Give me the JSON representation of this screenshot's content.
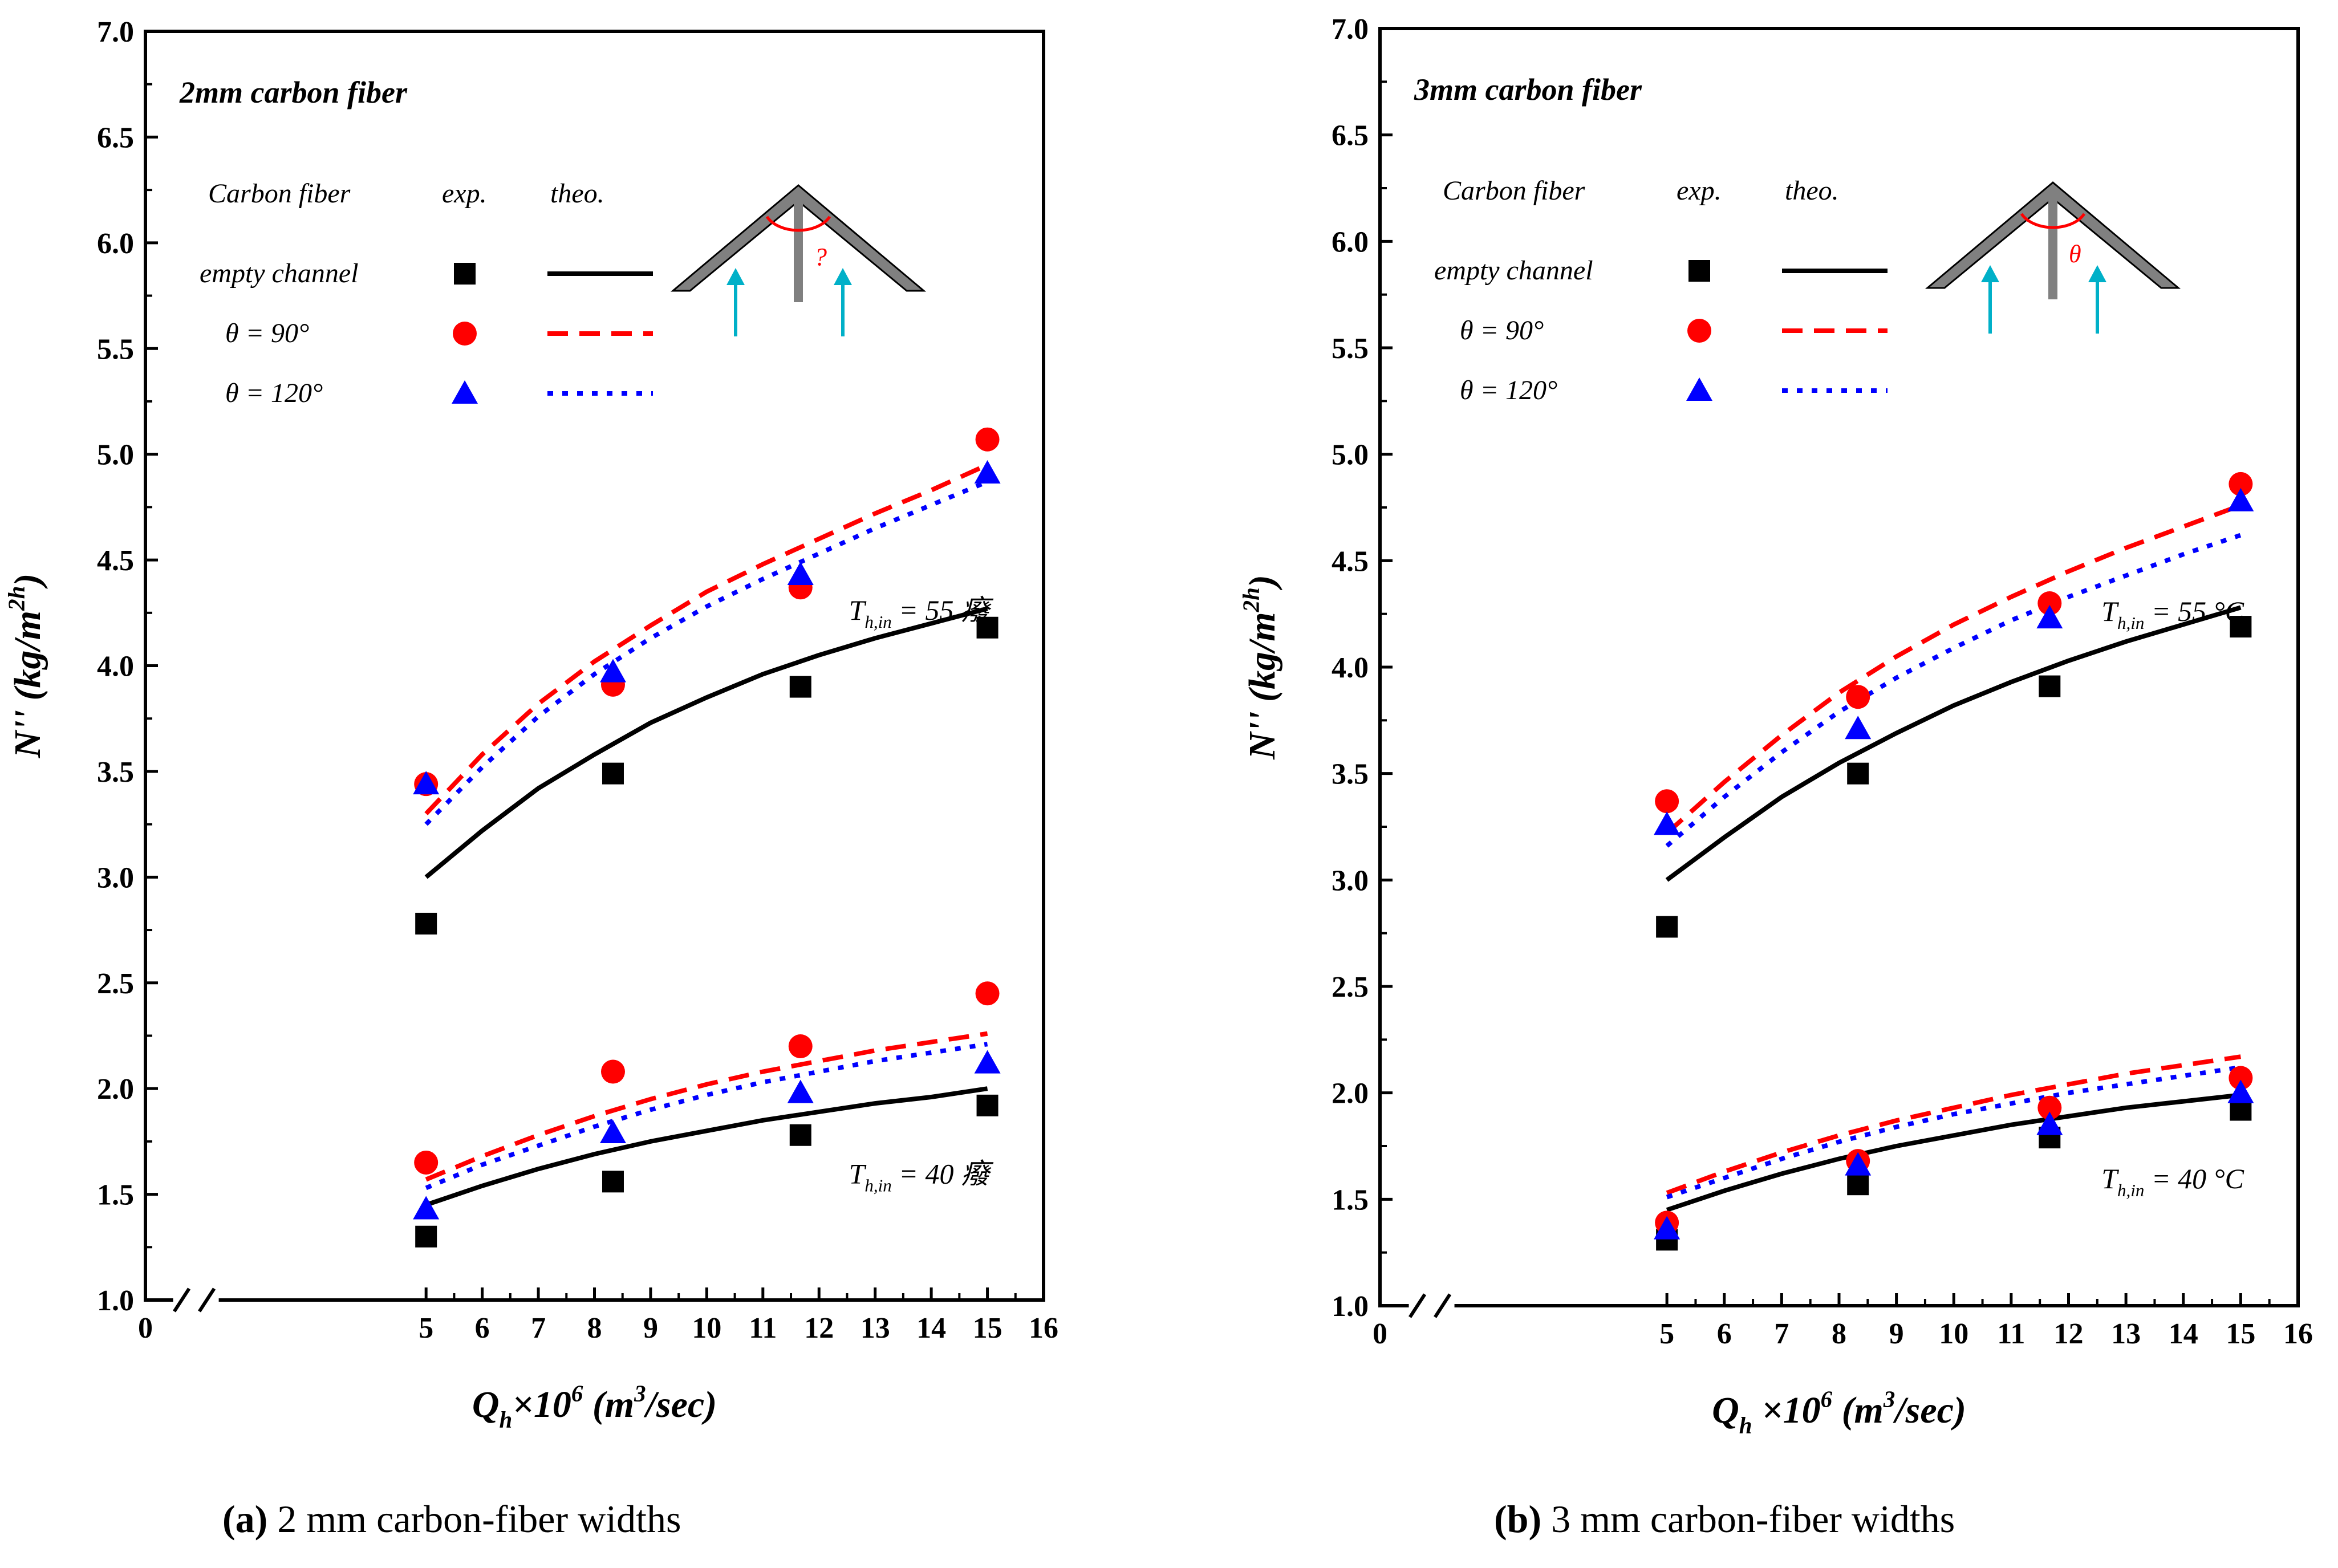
{
  "chart_data": [
    {
      "type": "line",
      "panel": "a",
      "title": "2mm carbon fiber",
      "xlabel": "Q_h×10^6 (m^3/sec)",
      "ylabel": "N'' (kg/m^2h)",
      "xlim": [
        0,
        16
      ],
      "ylim": [
        1.0,
        7.0
      ],
      "xticks": [
        "0",
        "5",
        "6",
        "7",
        "8",
        "9",
        "10",
        "11",
        "12",
        "13",
        "14",
        "15",
        "16"
      ],
      "yticks": [
        "1.0",
        "1.5",
        "2.0",
        "2.5",
        "3.0",
        "3.5",
        "4.0",
        "4.5",
        "5.0",
        "5.5",
        "6.0",
        "6.5",
        "7.0"
      ],
      "legend_headers": {
        "label": "Carbon fiber",
        "exp": "exp.",
        "theo": "theo."
      },
      "legend_labels": [
        "empty channel",
        "θ = 90°",
        "θ = 120°"
      ],
      "annotations": [
        "T_h,in = 55 癈",
        "T_h,in = 40 癈"
      ],
      "inset_angle_label": "?",
      "x": [
        5,
        8.33,
        11.67,
        15
      ],
      "series": [
        {
          "group": "T_h,in = 55",
          "name": "empty channel",
          "kind": "exp",
          "color": "#000000",
          "marker": "square",
          "values": [
            2.78,
            3.49,
            3.9,
            4.18
          ]
        },
        {
          "group": "T_h,in = 55",
          "name": "θ = 90°",
          "kind": "exp",
          "color": "#ff0000",
          "marker": "circle",
          "values": [
            3.44,
            3.91,
            4.37,
            5.07
          ]
        },
        {
          "group": "T_h,in = 55",
          "name": "θ = 120°",
          "kind": "exp",
          "color": "#0000ff",
          "marker": "triangle",
          "values": [
            3.44,
            3.97,
            4.43,
            4.91
          ]
        },
        {
          "group": "T_h,in = 40",
          "name": "empty channel",
          "kind": "exp",
          "color": "#000000",
          "marker": "square",
          "values": [
            1.3,
            1.56,
            1.78,
            1.92
          ]
        },
        {
          "group": "T_h,in = 40",
          "name": "θ = 90°",
          "kind": "exp",
          "color": "#ff0000",
          "marker": "circle",
          "values": [
            1.65,
            2.08,
            2.2,
            2.45
          ]
        },
        {
          "group": "T_h,in = 40",
          "name": "θ = 120°",
          "kind": "exp",
          "color": "#0000ff",
          "marker": "triangle",
          "values": [
            1.43,
            1.79,
            1.98,
            2.12
          ]
        }
      ],
      "theory": [
        {
          "group": "T_h,in = 55",
          "name": "empty channel",
          "color": "#000000",
          "dash": "solid",
          "x": [
            5,
            6,
            7,
            8,
            9,
            10,
            11,
            12,
            13,
            14,
            15
          ],
          "values": [
            3.0,
            3.22,
            3.42,
            3.58,
            3.73,
            3.85,
            3.96,
            4.05,
            4.13,
            4.2,
            4.27
          ]
        },
        {
          "group": "T_h,in = 55",
          "name": "θ = 90°",
          "color": "#ff0000",
          "dash": "dashed",
          "x": [
            5,
            6,
            7,
            8,
            9,
            10,
            11,
            12,
            13,
            14,
            15
          ],
          "values": [
            3.3,
            3.58,
            3.82,
            4.02,
            4.19,
            4.35,
            4.48,
            4.6,
            4.72,
            4.83,
            4.95
          ]
        },
        {
          "group": "T_h,in = 55",
          "name": "θ = 120°",
          "color": "#0000ff",
          "dash": "dotted",
          "x": [
            5,
            6,
            7,
            8,
            9,
            10,
            11,
            12,
            13,
            14,
            15
          ],
          "values": [
            3.25,
            3.52,
            3.76,
            3.96,
            4.13,
            4.28,
            4.41,
            4.53,
            4.65,
            4.76,
            4.87
          ]
        },
        {
          "group": "T_h,in = 40",
          "name": "empty channel",
          "color": "#000000",
          "dash": "solid",
          "x": [
            5,
            6,
            7,
            8,
            9,
            10,
            11,
            12,
            13,
            14,
            15
          ],
          "values": [
            1.45,
            1.54,
            1.62,
            1.69,
            1.75,
            1.8,
            1.85,
            1.89,
            1.93,
            1.96,
            2.0
          ]
        },
        {
          "group": "T_h,in = 40",
          "name": "θ = 90°",
          "color": "#ff0000",
          "dash": "dashed",
          "x": [
            5,
            6,
            7,
            8,
            9,
            10,
            11,
            12,
            13,
            14,
            15
          ],
          "values": [
            1.57,
            1.68,
            1.78,
            1.87,
            1.95,
            2.02,
            2.08,
            2.13,
            2.18,
            2.22,
            2.26
          ]
        },
        {
          "group": "T_h,in = 40",
          "name": "θ = 120°",
          "color": "#0000ff",
          "dash": "dotted",
          "x": [
            5,
            6,
            7,
            8,
            9,
            10,
            11,
            12,
            13,
            14,
            15
          ],
          "values": [
            1.53,
            1.64,
            1.73,
            1.82,
            1.9,
            1.97,
            2.03,
            2.08,
            2.13,
            2.17,
            2.21
          ]
        }
      ],
      "caption_letter": "(a)",
      "caption_text": " 2 mm carbon-fiber widths"
    },
    {
      "type": "line",
      "panel": "b",
      "title": "3mm carbon fiber",
      "xlabel": "Q_h ×10^6 (m^3/sec)",
      "ylabel": "N'' (kg/m^2h)",
      "xlim": [
        0,
        16
      ],
      "ylim": [
        1.0,
        7.0
      ],
      "xticks": [
        "0",
        "5",
        "6",
        "7",
        "8",
        "9",
        "10",
        "11",
        "12",
        "13",
        "14",
        "15",
        "16"
      ],
      "yticks": [
        "1.0",
        "1.5",
        "2.0",
        "2.5",
        "3.0",
        "3.5",
        "4.0",
        "4.5",
        "5.0",
        "5.5",
        "6.0",
        "6.5",
        "7.0"
      ],
      "legend_headers": {
        "label": "Carbon fiber",
        "exp": "exp.",
        "theo": "theo."
      },
      "legend_labels": [
        "empty channel",
        "θ = 90°",
        "θ = 120°"
      ],
      "annotations": [
        "T_h,in = 55 °C",
        "T_h,in = 40 °C"
      ],
      "inset_angle_label": "θ",
      "x": [
        5,
        8.33,
        11.67,
        15
      ],
      "series": [
        {
          "group": "T_h,in = 55",
          "name": "empty channel",
          "kind": "exp",
          "color": "#000000",
          "marker": "square",
          "values": [
            2.78,
            3.5,
            3.91,
            4.19
          ]
        },
        {
          "group": "T_h,in = 55",
          "name": "θ = 90°",
          "kind": "exp",
          "color": "#ff0000",
          "marker": "circle",
          "values": [
            3.37,
            3.86,
            4.3,
            4.86
          ]
        },
        {
          "group": "T_h,in = 55",
          "name": "θ = 120°",
          "kind": "exp",
          "color": "#0000ff",
          "marker": "triangle",
          "values": [
            3.26,
            3.71,
            4.23,
            4.78
          ]
        },
        {
          "group": "T_h,in = 40",
          "name": "empty channel",
          "kind": "exp",
          "color": "#000000",
          "marker": "square",
          "values": [
            1.31,
            1.57,
            1.79,
            1.92
          ]
        },
        {
          "group": "T_h,in = 40",
          "name": "θ = 90°",
          "kind": "exp",
          "color": "#ff0000",
          "marker": "circle",
          "values": [
            1.39,
            1.68,
            1.93,
            2.07
          ]
        },
        {
          "group": "T_h,in = 40",
          "name": "θ = 120°",
          "kind": "exp",
          "color": "#0000ff",
          "marker": "triangle",
          "values": [
            1.36,
            1.66,
            1.85,
            2.0
          ]
        }
      ],
      "theory": [
        {
          "group": "T_h,in = 55",
          "name": "empty channel",
          "color": "#000000",
          "dash": "solid",
          "x": [
            5,
            6,
            7,
            8,
            9,
            10,
            11,
            12,
            13,
            14,
            15
          ],
          "values": [
            3.0,
            3.2,
            3.39,
            3.55,
            3.69,
            3.82,
            3.93,
            4.03,
            4.12,
            4.2,
            4.28
          ]
        },
        {
          "group": "T_h,in = 55",
          "name": "θ = 90°",
          "color": "#ff0000",
          "dash": "dashed",
          "x": [
            5,
            6,
            7,
            8,
            9,
            10,
            11,
            12,
            13,
            14,
            15
          ],
          "values": [
            3.22,
            3.46,
            3.68,
            3.88,
            4.05,
            4.2,
            4.33,
            4.45,
            4.56,
            4.66,
            4.76
          ]
        },
        {
          "group": "T_h,in = 55",
          "name": "θ = 120°",
          "color": "#0000ff",
          "dash": "dotted",
          "x": [
            5,
            6,
            7,
            8,
            9,
            10,
            11,
            12,
            13,
            14,
            15
          ],
          "values": [
            3.16,
            3.39,
            3.6,
            3.79,
            3.95,
            4.09,
            4.22,
            4.33,
            4.43,
            4.53,
            4.62
          ]
        },
        {
          "group": "T_h,in = 40",
          "name": "empty channel",
          "color": "#000000",
          "dash": "solid",
          "x": [
            5,
            6,
            7,
            8,
            9,
            10,
            11,
            12,
            13,
            14,
            15
          ],
          "values": [
            1.45,
            1.54,
            1.62,
            1.69,
            1.75,
            1.8,
            1.85,
            1.89,
            1.93,
            1.96,
            1.99
          ]
        },
        {
          "group": "T_h,in = 40",
          "name": "θ = 90°",
          "color": "#ff0000",
          "dash": "dashed",
          "x": [
            5,
            6,
            7,
            8,
            9,
            10,
            11,
            12,
            13,
            14,
            15
          ],
          "values": [
            1.53,
            1.63,
            1.72,
            1.8,
            1.87,
            1.93,
            1.99,
            2.04,
            2.09,
            2.13,
            2.17
          ]
        },
        {
          "group": "T_h,in = 40",
          "name": "θ = 120°",
          "color": "#0000ff",
          "dash": "dotted",
          "x": [
            5,
            6,
            7,
            8,
            9,
            10,
            11,
            12,
            13,
            14,
            15
          ],
          "values": [
            1.51,
            1.6,
            1.69,
            1.77,
            1.84,
            1.9,
            1.95,
            2.0,
            2.04,
            2.08,
            2.12
          ]
        }
      ],
      "caption_letter": "(b)",
      "caption_text": " 3 mm carbon-fiber widths"
    }
  ]
}
